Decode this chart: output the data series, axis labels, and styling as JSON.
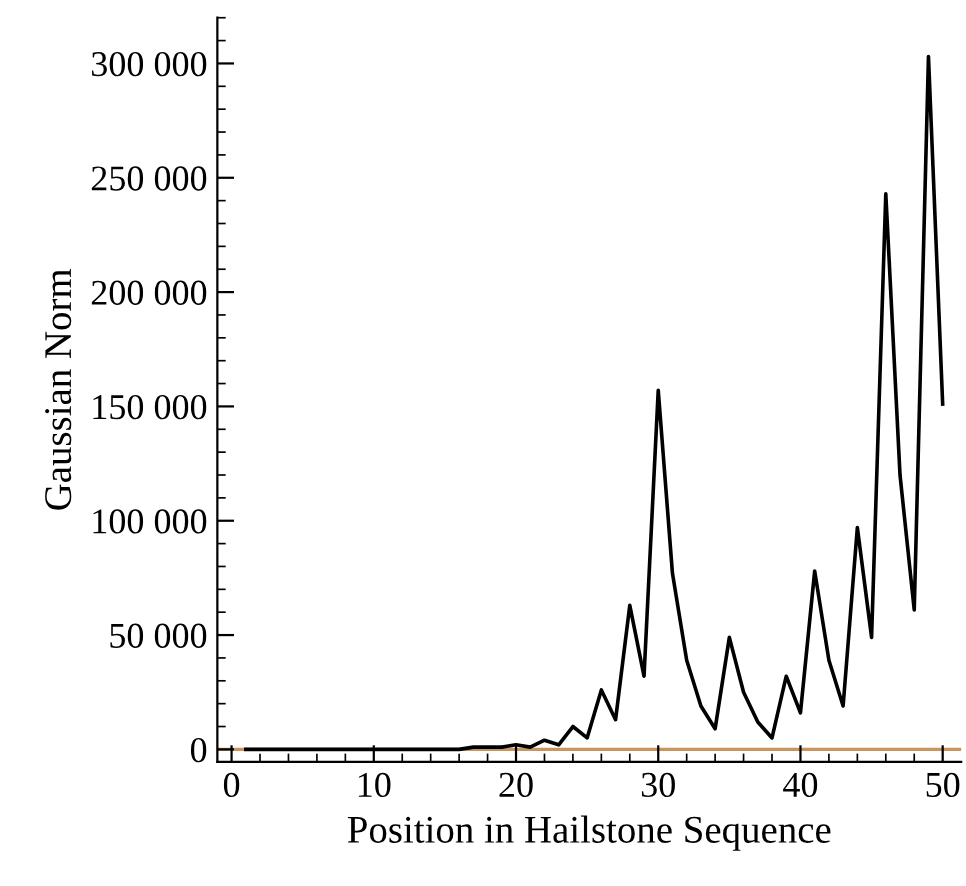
{
  "chart_data": {
    "type": "line",
    "xlabel": "Position in Hailstone Sequence",
    "ylabel": "Gaussian Norm",
    "x": [
      1,
      2,
      3,
      4,
      5,
      6,
      7,
      8,
      9,
      10,
      11,
      12,
      13,
      14,
      15,
      16,
      17,
      18,
      19,
      20,
      21,
      22,
      23,
      24,
      25,
      26,
      27,
      28,
      29,
      30,
      31,
      32,
      33,
      34,
      35,
      36,
      37,
      38,
      39,
      40,
      41,
      42,
      43,
      44,
      45,
      46,
      47,
      48,
      49,
      50
    ],
    "series": [
      {
        "color": "#000000",
        "values": [
          0,
          0,
          0,
          0,
          0,
          0,
          0,
          0,
          0,
          0,
          0,
          0,
          0,
          0,
          0,
          0,
          1000,
          1000,
          1000,
          2000,
          1000,
          4000,
          2000,
          10000,
          5000,
          26000,
          13000,
          63000,
          32000,
          157000,
          77000,
          39000,
          19000,
          9000,
          49000,
          25000,
          12000,
          5000,
          32000,
          16000,
          78000,
          39000,
          19000,
          97000,
          49000,
          243000,
          120000,
          61000,
          303000,
          151000
        ]
      }
    ],
    "xlim": [
      -1,
      51.3
    ],
    "ylim": [
      -5500,
      320000
    ],
    "xticks": [
      0,
      10,
      20,
      30,
      40,
      50
    ],
    "yticks": [
      {
        "value": 0,
        "label": "0"
      },
      {
        "value": 50000,
        "label": "50 000"
      },
      {
        "value": 100000,
        "label": "100 000"
      },
      {
        "value": 150000,
        "label": "150 000"
      },
      {
        "value": 200000,
        "label": "200 000"
      },
      {
        "value": 250000,
        "label": "250 000"
      },
      {
        "value": 300000,
        "label": "300 000"
      }
    ],
    "ref_lines": [
      {
        "axis": "y",
        "value": 0,
        "color": "#c8955f"
      }
    ],
    "marker": "none",
    "line_style": "solid",
    "grid": false
  }
}
